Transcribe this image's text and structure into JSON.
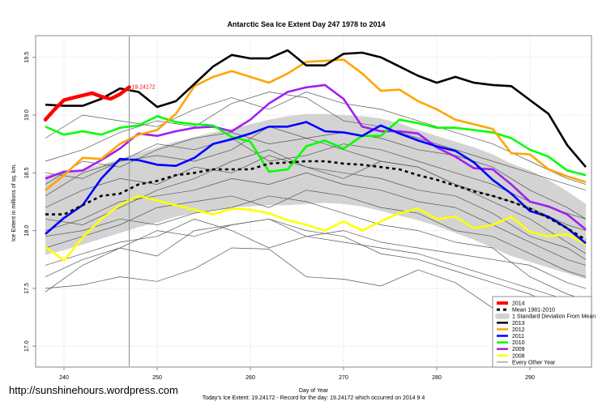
{
  "chart_data": {
    "type": "line",
    "title": "Antarctic Sea Ice Extent Day 247 1978 to 2014",
    "xlabel": "Day of Year",
    "ylabel": "Ice Extent in millions of sq. km.",
    "subtitle": "Today's Ice Extent: 19.24172  - Record for the day: 19.24172 which occurred on 2014 9 4",
    "watermark": "http://sunshinehours.wordpress.com",
    "xlim": [
      237,
      297
    ],
    "ylim": [
      16.85,
      19.7
    ],
    "x_ticks": [
      "240",
      "250",
      "260",
      "270",
      "280",
      "290"
    ],
    "x_tick_values": [
      240,
      250,
      260,
      270,
      280,
      290
    ],
    "y_ticks": [
      "17.0",
      "17.5",
      "18.0",
      "18.5",
      "19.0",
      "19.5"
    ],
    "y_tick_values": [
      17.0,
      17.5,
      18.0,
      18.5,
      19.0,
      19.5
    ],
    "grid": true,
    "legend_position": "bottom-right",
    "marker_day": 247,
    "annotation": {
      "day": 247,
      "value": 19.24172,
      "text": "19.24172",
      "color": "#ff0000"
    },
    "days": [
      238,
      240,
      242,
      244,
      246,
      248,
      250,
      252,
      254,
      256,
      258,
      260,
      262,
      264,
      266,
      268,
      270,
      272,
      274,
      276,
      278,
      280,
      282,
      284,
      286,
      288,
      290,
      292,
      294,
      296
    ],
    "sd_band": {
      "name": "1 Standard Deviation From Mean",
      "color": "#d3d3d3",
      "upper": [
        18.48,
        18.5,
        18.53,
        18.57,
        18.62,
        18.67,
        18.72,
        18.77,
        18.81,
        18.85,
        18.88,
        18.92,
        18.96,
        18.99,
        19.01,
        19.01,
        19.0,
        18.99,
        18.97,
        18.93,
        18.87,
        18.82,
        18.77,
        18.72,
        18.66,
        18.58,
        18.52,
        18.44,
        18.34,
        18.23
      ],
      "lower": [
        17.79,
        17.83,
        17.88,
        17.93,
        17.98,
        18.03,
        18.07,
        18.12,
        18.15,
        18.18,
        18.2,
        18.21,
        18.22,
        18.22,
        18.23,
        18.24,
        18.23,
        18.21,
        18.17,
        18.13,
        18.09,
        18.04,
        17.98,
        17.92,
        17.85,
        17.78,
        17.73,
        17.68,
        17.63,
        17.58
      ]
    },
    "other_years": {
      "name": "Every Other Year",
      "color": "#555555",
      "days": [
        238,
        242,
        246,
        250,
        254,
        258,
        262,
        266,
        270,
        274,
        278,
        282,
        286,
        290,
        294,
        296
      ],
      "lines": [
        [
          17.5,
          17.53,
          17.6,
          17.56,
          17.67,
          17.85,
          17.84,
          17.6,
          17.58,
          17.52,
          17.66,
          17.55,
          17.33,
          17.18,
          16.95,
          16.92
        ],
        [
          17.47,
          17.7,
          17.85,
          17.78,
          18.0,
          18.05,
          18.1,
          17.95,
          17.9,
          17.85,
          17.8,
          17.7,
          17.6,
          17.5,
          17.4,
          17.35
        ],
        [
          18.8,
          19.0,
          18.95,
          18.9,
          19.05,
          19.15,
          19.05,
          19.2,
          19.1,
          19.05,
          18.95,
          18.85,
          18.75,
          18.6,
          18.45,
          18.4
        ],
        [
          18.6,
          18.7,
          18.85,
          18.95,
          18.9,
          19.1,
          19.2,
          19.15,
          18.95,
          18.9,
          18.8,
          18.7,
          18.6,
          18.5,
          18.4,
          18.35
        ],
        [
          18.4,
          18.6,
          18.55,
          18.7,
          18.8,
          18.85,
          18.75,
          18.8,
          18.7,
          18.6,
          18.55,
          18.4,
          18.25,
          18.1,
          17.9,
          17.8
        ],
        [
          18.2,
          18.35,
          18.45,
          18.4,
          18.55,
          18.5,
          18.65,
          18.55,
          18.5,
          18.45,
          18.35,
          18.3,
          18.15,
          17.95,
          17.85,
          17.75
        ],
        [
          18.0,
          18.1,
          18.25,
          18.3,
          18.35,
          18.45,
          18.4,
          18.5,
          18.4,
          18.35,
          18.25,
          18.2,
          18.05,
          17.9,
          17.75,
          17.7
        ],
        [
          17.85,
          17.95,
          18.05,
          18.2,
          18.25,
          18.3,
          18.2,
          18.35,
          18.3,
          18.2,
          18.15,
          18.0,
          17.95,
          17.8,
          17.65,
          17.6
        ],
        [
          17.7,
          17.8,
          17.9,
          17.95,
          18.1,
          18.0,
          17.85,
          17.95,
          18.0,
          17.9,
          17.85,
          17.8,
          17.75,
          17.7,
          17.55,
          17.5
        ],
        [
          18.1,
          18.05,
          18.2,
          18.35,
          18.45,
          18.6,
          18.7,
          18.55,
          18.45,
          18.6,
          18.55,
          18.4,
          18.3,
          18.2,
          18.05,
          18.0
        ],
        [
          18.3,
          18.5,
          18.6,
          18.75,
          18.7,
          18.8,
          18.6,
          18.65,
          18.75,
          18.7,
          18.6,
          18.5,
          18.4,
          18.25,
          18.15,
          18.1
        ],
        [
          17.95,
          18.0,
          18.1,
          18.05,
          18.15,
          18.2,
          18.3,
          18.25,
          18.15,
          18.05,
          18.0,
          17.9,
          17.85,
          17.6,
          17.45,
          17.4
        ],
        [
          18.5,
          18.45,
          18.6,
          18.65,
          18.6,
          18.7,
          18.9,
          18.8,
          18.85,
          18.8,
          18.7,
          18.65,
          18.55,
          18.35,
          18.2,
          18.1
        ],
        [
          17.6,
          17.75,
          17.85,
          18.0,
          17.95,
          18.05,
          18.1,
          18.0,
          17.95,
          17.8,
          17.75,
          17.65,
          17.55,
          17.45,
          17.3,
          17.25
        ]
      ]
    },
    "mean": {
      "name": "Mean 1981-2010",
      "color": "#000000",
      "values": [
        18.14,
        18.14,
        18.22,
        18.3,
        18.32,
        18.4,
        18.43,
        18.48,
        18.5,
        18.53,
        18.53,
        18.53,
        18.58,
        18.59,
        18.6,
        18.6,
        18.58,
        18.57,
        18.55,
        18.53,
        18.48,
        18.44,
        18.39,
        18.34,
        18.3,
        18.25,
        18.19,
        18.11,
        18.02,
        17.92
      ]
    },
    "series": [
      {
        "name": "2013",
        "color": "#000000",
        "values": [
          19.09,
          19.08,
          19.08,
          19.14,
          19.23,
          19.2,
          19.07,
          19.12,
          19.27,
          19.42,
          19.52,
          19.49,
          19.49,
          19.56,
          19.43,
          19.43,
          19.53,
          19.54,
          19.5,
          19.42,
          19.34,
          19.28,
          19.33,
          19.28,
          19.26,
          19.25,
          19.13,
          19.01,
          18.74,
          18.55
        ]
      },
      {
        "name": "2012",
        "color": "#ffa500",
        "values": [
          18.35,
          18.48,
          18.63,
          18.62,
          18.75,
          18.83,
          18.87,
          19.01,
          19.25,
          19.33,
          19.38,
          19.33,
          19.28,
          19.36,
          19.46,
          19.47,
          19.48,
          19.36,
          19.21,
          19.22,
          19.12,
          19.05,
          18.96,
          18.92,
          18.88,
          18.67,
          18.66,
          18.53,
          18.47,
          18.42
        ]
      },
      {
        "name": "2011",
        "color": "#0000ff",
        "values": [
          17.97,
          18.11,
          18.22,
          18.45,
          18.62,
          18.61,
          18.57,
          18.56,
          18.63,
          18.75,
          18.79,
          18.84,
          18.9,
          18.9,
          18.94,
          18.86,
          18.85,
          18.82,
          18.91,
          18.84,
          18.78,
          18.73,
          18.69,
          18.59,
          18.44,
          18.32,
          18.17,
          18.12,
          18.02,
          17.89
        ]
      },
      {
        "name": "2010",
        "color": "#00ff00",
        "values": [
          18.9,
          18.83,
          18.86,
          18.83,
          18.89,
          18.91,
          18.99,
          18.94,
          18.92,
          18.91,
          18.81,
          18.77,
          18.51,
          18.53,
          18.73,
          18.78,
          18.71,
          18.82,
          18.82,
          18.96,
          18.93,
          18.89,
          18.89,
          18.87,
          18.85,
          18.8,
          18.7,
          18.64,
          18.52,
          18.48
        ]
      },
      {
        "name": "2009",
        "color": "#a020f0",
        "values": [
          18.45,
          18.51,
          18.52,
          18.61,
          18.71,
          18.84,
          18.82,
          18.86,
          18.89,
          18.9,
          18.86,
          18.96,
          19.1,
          19.2,
          19.24,
          19.26,
          19.14,
          18.9,
          18.86,
          18.86,
          18.84,
          18.72,
          18.64,
          18.54,
          18.53,
          18.4,
          18.25,
          18.21,
          18.14,
          18.01
        ]
      },
      {
        "name": "2008",
        "color": "#ffff00",
        "values": [
          17.86,
          17.74,
          17.94,
          18.1,
          18.22,
          18.3,
          18.26,
          18.22,
          18.18,
          18.14,
          18.19,
          18.18,
          18.15,
          18.09,
          18.05,
          18.0,
          18.08,
          18.0,
          18.08,
          18.15,
          18.19,
          18.1,
          18.12,
          18.02,
          18.05,
          18.12,
          17.99,
          17.95,
          17.97,
          17.88
        ]
      }
    ],
    "current": {
      "name": "2014",
      "color": "#ff0000",
      "days": [
        238,
        239,
        240,
        241,
        242,
        243,
        244,
        245,
        246,
        247
      ],
      "values": [
        18.96,
        19.05,
        19.13,
        19.15,
        19.17,
        19.19,
        19.16,
        19.14,
        19.18,
        19.24172
      ]
    },
    "legend": [
      "2014",
      "Mean 1981-2010",
      "1 Standard Deviation From Mean",
      "2013",
      "2012",
      "2011",
      "2010",
      "2009",
      "2008",
      "Every Other Year"
    ]
  }
}
